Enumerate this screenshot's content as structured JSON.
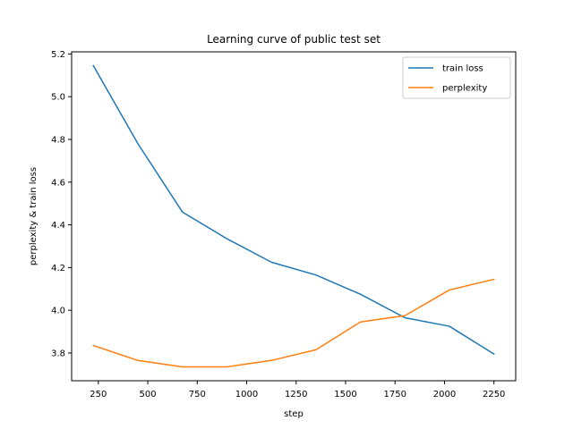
{
  "chart_data": {
    "type": "line",
    "title": "Learning curve of public test set",
    "xlabel": "step",
    "ylabel": "perplexity & train loss",
    "x": [
      225,
      450,
      675,
      900,
      1125,
      1350,
      1575,
      1800,
      2025,
      2250
    ],
    "series": [
      {
        "name": "train loss",
        "color": "#1f77b4",
        "values": [
          5.145,
          4.78,
          4.46,
          4.335,
          4.225,
          4.165,
          4.075,
          3.965,
          3.925,
          3.795
        ]
      },
      {
        "name": "perplexity",
        "color": "#ff7f0e",
        "values": [
          3.835,
          3.765,
          3.735,
          3.735,
          3.765,
          3.815,
          3.945,
          3.975,
          4.095,
          4.145
        ]
      }
    ],
    "xlim": [
      115,
      2360
    ],
    "ylim": [
      3.67,
      5.21
    ],
    "xticks": [
      250,
      500,
      750,
      1000,
      1250,
      1500,
      1750,
      2000,
      2250
    ],
    "yticks": [
      3.8,
      4.0,
      4.2,
      4.4,
      4.6,
      4.8,
      5.0,
      5.2
    ],
    "ytick_labels": [
      "3.8",
      "4.0",
      "4.2",
      "4.4",
      "4.6",
      "4.8",
      "5.0",
      "5.2"
    ],
    "grid": false,
    "legend_position": "top-right"
  }
}
